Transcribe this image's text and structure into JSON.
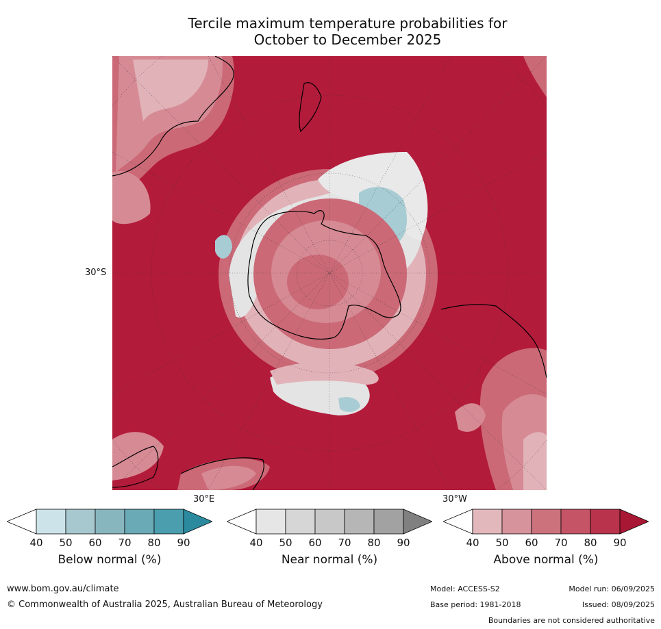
{
  "title": {
    "line1": "Tercile maximum temperature probabilities for",
    "line2": "October to December 2025"
  },
  "map": {
    "projection": "south-polar-stereographic",
    "labels": {
      "lat_30s": "30°S",
      "lon_30e": "30°E",
      "lon_30w": "30°W"
    },
    "colors": {
      "ocean_above_90": "#b31b3b",
      "above_80": "#c34a5e",
      "above_70": "#cb6977",
      "above_60": "#d68a94",
      "above_50": "#e1b3b9",
      "above_40": "#f1dfe1",
      "near_normal": "#e4e4e4",
      "below_normal": "#a8ccd3",
      "coastline": "#000000"
    }
  },
  "colorbars": [
    {
      "title": "Below normal (%)",
      "ticks": [
        "40",
        "50",
        "60",
        "70",
        "80",
        "90"
      ],
      "colors": [
        "#ffffff",
        "#cce3e9",
        "#a8c8cf",
        "#88b6bf",
        "#6aaab7",
        "#4a9eae",
        "#2b8a9e"
      ]
    },
    {
      "title": "Near normal (%)",
      "ticks": [
        "40",
        "50",
        "60",
        "70",
        "80",
        "90"
      ],
      "colors": [
        "#ffffff",
        "#e6e6e6",
        "#d6d6d6",
        "#c8c8c8",
        "#b6b6b6",
        "#a2a2a2",
        "#808080"
      ]
    },
    {
      "title": "Above normal (%)",
      "ticks": [
        "40",
        "50",
        "60",
        "70",
        "80",
        "90"
      ],
      "colors": [
        "#ffffff",
        "#e3b8bd",
        "#d6939b",
        "#cc727d",
        "#c45466",
        "#b8334b",
        "#a81733"
      ]
    }
  ],
  "footer": {
    "url": "www.bom.gov.au/climate",
    "copyright": "© Commonwealth of Australia 2025, Australian Bureau of Meteorology",
    "model": "Model: ACCESS-S2",
    "base_period": "Base period: 1981-2018",
    "model_run": "Model run: 06/09/2025",
    "issued": "Issued: 08/09/2025",
    "disclaimer": "Boundaries are not considered authoritative"
  }
}
